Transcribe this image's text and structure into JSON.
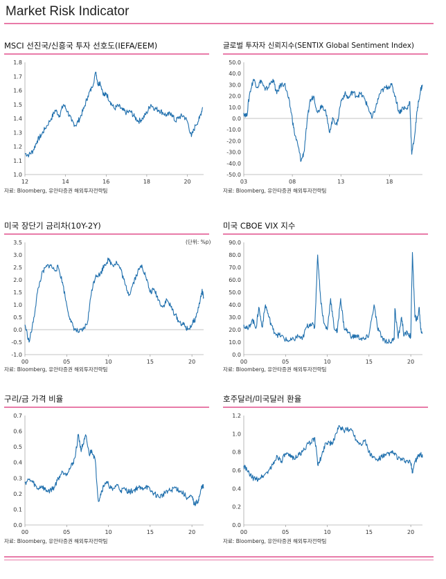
{
  "page": {
    "title": "Market Risk Indicator"
  },
  "colors": {
    "accent": "#e87aa8",
    "line": "#1f6fad"
  },
  "source_note": "자료: Bloomberg,  유안타증권 해외투자전략팀",
  "chart_data": [
    {
      "id": "msci",
      "type": "line",
      "title": "MSCI 선진국/신흥국  투자 선호도(IEFA/EEM)",
      "xlabel": "",
      "ylabel": "",
      "yticks": [
        "1.8",
        "1.7",
        "1.6",
        "1.5",
        "1.4",
        "1.3",
        "1.2",
        "1.1",
        "1.0"
      ],
      "xticks": [
        "12",
        "14",
        "16",
        "18",
        "20"
      ],
      "ylim": [
        1.0,
        1.8
      ],
      "xlim": [
        2012,
        2020.8
      ],
      "xtick_values": [
        2012,
        2014,
        2016,
        2018,
        2020
      ],
      "points": [
        [
          2012.0,
          1.15
        ],
        [
          2012.2,
          1.14
        ],
        [
          2012.4,
          1.17
        ],
        [
          2012.6,
          1.24
        ],
        [
          2012.8,
          1.28
        ],
        [
          2013.0,
          1.33
        ],
        [
          2013.3,
          1.4
        ],
        [
          2013.5,
          1.46
        ],
        [
          2013.7,
          1.42
        ],
        [
          2013.9,
          1.5
        ],
        [
          2014.1,
          1.45
        ],
        [
          2014.3,
          1.38
        ],
        [
          2014.5,
          1.35
        ],
        [
          2014.7,
          1.4
        ],
        [
          2014.9,
          1.47
        ],
        [
          2015.1,
          1.56
        ],
        [
          2015.3,
          1.62
        ],
        [
          2015.5,
          1.73
        ],
        [
          2015.6,
          1.64
        ],
        [
          2015.7,
          1.66
        ],
        [
          2015.9,
          1.56
        ],
        [
          2016.0,
          1.58
        ],
        [
          2016.2,
          1.52
        ],
        [
          2016.4,
          1.47
        ],
        [
          2016.6,
          1.49
        ],
        [
          2016.8,
          1.46
        ],
        [
          2017.0,
          1.44
        ],
        [
          2017.2,
          1.45
        ],
        [
          2017.4,
          1.41
        ],
        [
          2017.6,
          1.38
        ],
        [
          2017.8,
          1.4
        ],
        [
          2018.0,
          1.44
        ],
        [
          2018.2,
          1.5
        ],
        [
          2018.4,
          1.47
        ],
        [
          2018.6,
          1.46
        ],
        [
          2018.8,
          1.44
        ],
        [
          2019.0,
          1.42
        ],
        [
          2019.2,
          1.44
        ],
        [
          2019.4,
          1.38
        ],
        [
          2019.6,
          1.41
        ],
        [
          2019.8,
          1.42
        ],
        [
          2020.0,
          1.38
        ],
        [
          2020.2,
          1.27
        ],
        [
          2020.4,
          1.35
        ],
        [
          2020.6,
          1.4
        ],
        [
          2020.75,
          1.48
        ]
      ]
    },
    {
      "id": "sentix",
      "type": "line",
      "title": "글로벌  투자자  신뢰지수(SENTIX  Global Sentiment Index)",
      "xlabel": "",
      "ylabel": "",
      "yticks": [
        "50.0",
        "40.0",
        "30.0",
        "20.0",
        "10.0",
        "0.0",
        "-10.0",
        "-20.0",
        "-30.0",
        "-40.0",
        "-50.0"
      ],
      "xticks": [
        "03",
        "08",
        "13",
        "18"
      ],
      "ylim": [
        -50,
        50
      ],
      "xlim": [
        2003,
        2021.4
      ],
      "xtick_values": [
        2003,
        2008,
        2013,
        2018
      ],
      "points": [
        [
          2003.0,
          5
        ],
        [
          2003.3,
          2
        ],
        [
          2003.6,
          22
        ],
        [
          2004.0,
          35
        ],
        [
          2004.4,
          28
        ],
        [
          2004.8,
          34
        ],
        [
          2005.2,
          25
        ],
        [
          2005.6,
          29
        ],
        [
          2006.0,
          35
        ],
        [
          2006.4,
          22
        ],
        [
          2006.8,
          30
        ],
        [
          2007.2,
          31
        ],
        [
          2007.6,
          18
        ],
        [
          2007.9,
          5
        ],
        [
          2008.2,
          -12
        ],
        [
          2008.6,
          -25
        ],
        [
          2008.9,
          -38
        ],
        [
          2009.2,
          -30
        ],
        [
          2009.5,
          -5
        ],
        [
          2009.8,
          15
        ],
        [
          2010.2,
          20
        ],
        [
          2010.6,
          5
        ],
        [
          2011.0,
          12
        ],
        [
          2011.4,
          8
        ],
        [
          2011.8,
          -12
        ],
        [
          2012.2,
          0
        ],
        [
          2012.6,
          -6
        ],
        [
          2013.0,
          15
        ],
        [
          2013.4,
          22
        ],
        [
          2013.8,
          18
        ],
        [
          2014.2,
          24
        ],
        [
          2014.6,
          20
        ],
        [
          2015.0,
          22
        ],
        [
          2015.4,
          18
        ],
        [
          2015.8,
          10
        ],
        [
          2016.2,
          0
        ],
        [
          2016.6,
          10
        ],
        [
          2017.0,
          22
        ],
        [
          2017.4,
          26
        ],
        [
          2017.8,
          28
        ],
        [
          2018.2,
          30
        ],
        [
          2018.6,
          20
        ],
        [
          2019.0,
          5
        ],
        [
          2019.4,
          10
        ],
        [
          2019.8,
          8
        ],
        [
          2020.1,
          15
        ],
        [
          2020.3,
          -32
        ],
        [
          2020.6,
          -15
        ],
        [
          2020.9,
          10
        ],
        [
          2021.2,
          25
        ],
        [
          2021.4,
          30
        ]
      ]
    },
    {
      "id": "spread",
      "type": "line",
      "title": "미국  장단기  금리차(10Y-2Y)",
      "unit": "(단위: %p)",
      "xlabel": "",
      "ylabel": "",
      "yticks": [
        "3.5",
        "3.0",
        "2.5",
        "2.0",
        "1.5",
        "1.0",
        "0.5",
        "0.0",
        "-0.5",
        "-1.0"
      ],
      "xticks": [
        "00",
        "05",
        "10",
        "15",
        "20"
      ],
      "ylim": [
        -1.0,
        3.5
      ],
      "xlim": [
        2000,
        2021.4
      ],
      "xtick_values": [
        2000,
        2005,
        2010,
        2015,
        2020
      ],
      "points": [
        [
          2000.0,
          0.2
        ],
        [
          2000.5,
          -0.5
        ],
        [
          2001.0,
          0.3
        ],
        [
          2001.5,
          1.5
        ],
        [
          2002.0,
          2.2
        ],
        [
          2002.5,
          2.5
        ],
        [
          2003.0,
          2.6
        ],
        [
          2003.5,
          2.4
        ],
        [
          2004.0,
          2.5
        ],
        [
          2004.5,
          1.9
        ],
        [
          2005.0,
          1.0
        ],
        [
          2005.5,
          0.3
        ],
        [
          2006.0,
          0.0
        ],
        [
          2006.5,
          -0.1
        ],
        [
          2007.0,
          0.0
        ],
        [
          2007.5,
          0.3
        ],
        [
          2008.0,
          1.6
        ],
        [
          2008.5,
          2.2
        ],
        [
          2009.0,
          2.2
        ],
        [
          2009.5,
          2.6
        ],
        [
          2010.0,
          2.8
        ],
        [
          2010.5,
          2.6
        ],
        [
          2011.0,
          2.7
        ],
        [
          2011.5,
          2.4
        ],
        [
          2012.0,
          1.8
        ],
        [
          2012.5,
          1.4
        ],
        [
          2013.0,
          1.9
        ],
        [
          2013.5,
          2.3
        ],
        [
          2014.0,
          2.6
        ],
        [
          2014.5,
          2.1
        ],
        [
          2015.0,
          1.5
        ],
        [
          2015.5,
          1.6
        ],
        [
          2016.0,
          1.2
        ],
        [
          2016.5,
          0.9
        ],
        [
          2017.0,
          1.2
        ],
        [
          2017.5,
          0.9
        ],
        [
          2018.0,
          0.6
        ],
        [
          2018.5,
          0.3
        ],
        [
          2019.0,
          0.2
        ],
        [
          2019.5,
          0.0
        ],
        [
          2020.0,
          0.2
        ],
        [
          2020.5,
          0.5
        ],
        [
          2021.0,
          1.2
        ],
        [
          2021.2,
          1.55
        ],
        [
          2021.4,
          1.3
        ]
      ]
    },
    {
      "id": "vix",
      "type": "line",
      "title": "미국  CBOE  VIX  지수",
      "xlabel": "",
      "ylabel": "",
      "yticks": [
        "90.0",
        "80.0",
        "70.0",
        "60.0",
        "50.0",
        "40.0",
        "30.0",
        "20.0",
        "10.0",
        "0.0"
      ],
      "xticks": [
        "00",
        "05",
        "10",
        "15",
        "20"
      ],
      "ylim": [
        0,
        90
      ],
      "xlim": [
        2000,
        2021.4
      ],
      "xtick_values": [
        2000,
        2005,
        2010,
        2015,
        2020
      ],
      "points": [
        [
          2000.0,
          24
        ],
        [
          2000.5,
          20
        ],
        [
          2001.0,
          28
        ],
        [
          2001.5,
          22
        ],
        [
          2001.8,
          38
        ],
        [
          2002.2,
          22
        ],
        [
          2002.6,
          40
        ],
        [
          2003.0,
          30
        ],
        [
          2003.5,
          20
        ],
        [
          2004.0,
          16
        ],
        [
          2004.5,
          15
        ],
        [
          2005.0,
          12
        ],
        [
          2005.5,
          11
        ],
        [
          2006.0,
          12
        ],
        [
          2006.5,
          15
        ],
        [
          2007.0,
          12
        ],
        [
          2007.5,
          22
        ],
        [
          2008.0,
          25
        ],
        [
          2008.5,
          22
        ],
        [
          2008.85,
          80
        ],
        [
          2009.2,
          45
        ],
        [
          2009.6,
          25
        ],
        [
          2010.0,
          20
        ],
        [
          2010.4,
          45
        ],
        [
          2010.8,
          22
        ],
        [
          2011.2,
          18
        ],
        [
          2011.6,
          45
        ],
        [
          2012.0,
          22
        ],
        [
          2012.5,
          18
        ],
        [
          2013.0,
          14
        ],
        [
          2013.5,
          15
        ],
        [
          2014.0,
          13
        ],
        [
          2014.5,
          12
        ],
        [
          2015.0,
          16
        ],
        [
          2015.6,
          40
        ],
        [
          2016.0,
          22
        ],
        [
          2016.5,
          14
        ],
        [
          2017.0,
          11
        ],
        [
          2017.5,
          10
        ],
        [
          2018.0,
          12
        ],
        [
          2018.1,
          37
        ],
        [
          2018.5,
          13
        ],
        [
          2018.9,
          30
        ],
        [
          2019.2,
          15
        ],
        [
          2019.6,
          18
        ],
        [
          2020.0,
          14
        ],
        [
          2020.2,
          82
        ],
        [
          2020.5,
          30
        ],
        [
          2020.8,
          28
        ],
        [
          2021.0,
          38
        ],
        [
          2021.2,
          20
        ],
        [
          2021.4,
          17
        ]
      ]
    },
    {
      "id": "copper_gold",
      "type": "line",
      "title": "구리/금  가격  비율",
      "xlabel": "",
      "ylabel": "",
      "yticks": [
        "0.7",
        "0.6",
        "0.5",
        "0.4",
        "0.3",
        "0.2",
        "0.1",
        "0.0"
      ],
      "xticks": [
        "00",
        "05",
        "10",
        "15",
        "20"
      ],
      "ylim": [
        0.0,
        0.7
      ],
      "xlim": [
        2000,
        2021.4
      ],
      "xtick_values": [
        2000,
        2005,
        2010,
        2015,
        2020
      ],
      "points": [
        [
          2000.0,
          0.27
        ],
        [
          2000.5,
          0.29
        ],
        [
          2001.0,
          0.27
        ],
        [
          2001.5,
          0.23
        ],
        [
          2002.0,
          0.25
        ],
        [
          2002.5,
          0.22
        ],
        [
          2003.0,
          0.22
        ],
        [
          2003.5,
          0.24
        ],
        [
          2004.0,
          0.3
        ],
        [
          2004.5,
          0.34
        ],
        [
          2005.0,
          0.33
        ],
        [
          2005.5,
          0.37
        ],
        [
          2006.0,
          0.43
        ],
        [
          2006.4,
          0.58
        ],
        [
          2006.7,
          0.48
        ],
        [
          2007.0,
          0.52
        ],
        [
          2007.3,
          0.57
        ],
        [
          2007.7,
          0.45
        ],
        [
          2008.0,
          0.48
        ],
        [
          2008.4,
          0.42
        ],
        [
          2008.8,
          0.15
        ],
        [
          2009.2,
          0.22
        ],
        [
          2009.6,
          0.27
        ],
        [
          2010.0,
          0.26
        ],
        [
          2010.5,
          0.22
        ],
        [
          2011.0,
          0.26
        ],
        [
          2011.5,
          0.22
        ],
        [
          2012.0,
          0.23
        ],
        [
          2012.5,
          0.21
        ],
        [
          2013.0,
          0.22
        ],
        [
          2013.5,
          0.24
        ],
        [
          2014.0,
          0.23
        ],
        [
          2014.5,
          0.25
        ],
        [
          2015.0,
          0.22
        ],
        [
          2015.5,
          0.2
        ],
        [
          2016.0,
          0.18
        ],
        [
          2016.5,
          0.19
        ],
        [
          2017.0,
          0.22
        ],
        [
          2017.5,
          0.22
        ],
        [
          2018.0,
          0.24
        ],
        [
          2018.5,
          0.22
        ],
        [
          2019.0,
          0.2
        ],
        [
          2019.5,
          0.17
        ],
        [
          2020.0,
          0.18
        ],
        [
          2020.3,
          0.13
        ],
        [
          2020.7,
          0.15
        ],
        [
          2021.0,
          0.2
        ],
        [
          2021.2,
          0.25
        ],
        [
          2021.4,
          0.24
        ]
      ]
    },
    {
      "id": "audusd",
      "type": "line",
      "title": "호주달러/미국달러  환율",
      "xlabel": "",
      "ylabel": "",
      "yticks": [
        "1.2",
        "1.0",
        "0.8",
        "0.6",
        "0.4",
        "0.2",
        "0.0"
      ],
      "xticks": [
        "00",
        "05",
        "10",
        "15",
        "20"
      ],
      "ylim": [
        0.0,
        1.2
      ],
      "xlim": [
        2000,
        2021.4
      ],
      "xtick_values": [
        2000,
        2005,
        2010,
        2015,
        2020
      ],
      "points": [
        [
          2000.0,
          0.65
        ],
        [
          2000.5,
          0.58
        ],
        [
          2001.0,
          0.52
        ],
        [
          2001.5,
          0.5
        ],
        [
          2002.0,
          0.52
        ],
        [
          2002.5,
          0.55
        ],
        [
          2003.0,
          0.6
        ],
        [
          2003.5,
          0.66
        ],
        [
          2004.0,
          0.76
        ],
        [
          2004.5,
          0.7
        ],
        [
          2005.0,
          0.78
        ],
        [
          2005.5,
          0.75
        ],
        [
          2006.0,
          0.74
        ],
        [
          2006.5,
          0.76
        ],
        [
          2007.0,
          0.8
        ],
        [
          2007.5,
          0.87
        ],
        [
          2008.0,
          0.9
        ],
        [
          2008.5,
          0.96
        ],
        [
          2008.9,
          0.65
        ],
        [
          2009.3,
          0.75
        ],
        [
          2009.8,
          0.9
        ],
        [
          2010.2,
          0.91
        ],
        [
          2010.6,
          0.88
        ],
        [
          2011.0,
          1.0
        ],
        [
          2011.5,
          1.08
        ],
        [
          2012.0,
          1.03
        ],
        [
          2012.5,
          1.05
        ],
        [
          2013.0,
          1.04
        ],
        [
          2013.5,
          0.93
        ],
        [
          2014.0,
          0.89
        ],
        [
          2014.5,
          0.93
        ],
        [
          2015.0,
          0.8
        ],
        [
          2015.5,
          0.74
        ],
        [
          2016.0,
          0.71
        ],
        [
          2016.5,
          0.75
        ],
        [
          2017.0,
          0.76
        ],
        [
          2017.5,
          0.79
        ],
        [
          2018.0,
          0.79
        ],
        [
          2018.5,
          0.73
        ],
        [
          2019.0,
          0.71
        ],
        [
          2019.5,
          0.7
        ],
        [
          2020.0,
          0.68
        ],
        [
          2020.2,
          0.58
        ],
        [
          2020.5,
          0.7
        ],
        [
          2020.9,
          0.75
        ],
        [
          2021.2,
          0.77
        ],
        [
          2021.4,
          0.74
        ]
      ]
    }
  ]
}
